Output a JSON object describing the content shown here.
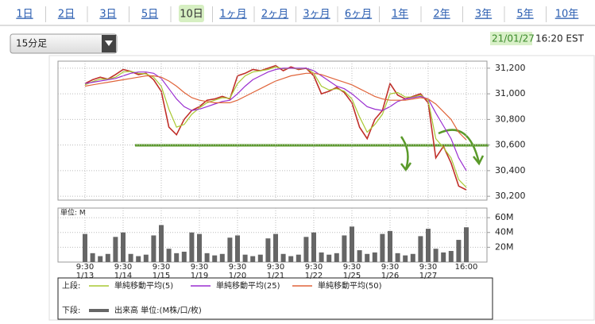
{
  "tabs": [
    {
      "label": "1日"
    },
    {
      "label": "2日"
    },
    {
      "label": "3日"
    },
    {
      "label": "5日"
    },
    {
      "label": "10日",
      "selected": true
    },
    {
      "label": "1ヶ月"
    },
    {
      "label": "2ヶ月"
    },
    {
      "label": "3ヶ月"
    },
    {
      "label": "6ヶ月"
    },
    {
      "label": "1年"
    },
    {
      "label": "2年"
    },
    {
      "label": "3年"
    },
    {
      "label": "5年"
    },
    {
      "label": "10年"
    }
  ],
  "interval_select": "15分足",
  "timestamp": {
    "date": "21/01/27",
    "time": "16:20 EST"
  },
  "legend": {
    "top_label": "上段:",
    "bottom_label": "下段:"
  },
  "chart_data": [
    {
      "type": "line",
      "ylim": [
        30170,
        31255
      ],
      "yticks": [
        {
          "value": 30200,
          "label": "30,200"
        },
        {
          "value": 30400,
          "label": "30,400"
        },
        {
          "value": 30600,
          "label": "30,600"
        },
        {
          "value": 30800,
          "label": "30,800"
        },
        {
          "value": 31000,
          "label": "31,000"
        },
        {
          "value": 31200,
          "label": "31,200"
        }
      ],
      "grid": true,
      "series": [
        {
          "color": "#c0302a",
          "values": [
            31080,
            31110,
            31130,
            31115,
            31150,
            31190,
            31175,
            31150,
            31160,
            31110,
            31020,
            30740,
            30680,
            30800,
            30870,
            30900,
            30950,
            30960,
            30980,
            30960,
            31140,
            31160,
            31190,
            31180,
            31200,
            31220,
            31180,
            31210,
            31190,
            31200,
            31140,
            31000,
            31020,
            31050,
            31010,
            30930,
            30740,
            30650,
            30800,
            30870,
            31080,
            30990,
            30960,
            30980,
            31000,
            30930,
            30500,
            30590,
            30460,
            30280,
            30250
          ]
        },
        {
          "name": "単純移動平均(5)",
          "color": "#a8c832",
          "values": [
            31070,
            31095,
            31115,
            31115,
            31130,
            31170,
            31175,
            31160,
            31155,
            31130,
            31060,
            30880,
            30740,
            30760,
            30840,
            30890,
            30930,
            30950,
            30970,
            30965,
            31080,
            31140,
            31170,
            31180,
            31190,
            31210,
            31195,
            31200,
            31195,
            31200,
            31160,
            31060,
            31030,
            31040,
            31020,
            30960,
            30820,
            30700,
            30760,
            30840,
            31000,
            31010,
            30975,
            30975,
            30990,
            30950,
            30650,
            30580,
            30500,
            30330,
            30270
          ]
        },
        {
          "name": "単純移動平均(25)",
          "color": "#9a2fd0",
          "values": [
            31080,
            31090,
            31100,
            31110,
            31120,
            31140,
            31160,
            31170,
            31170,
            31160,
            31120,
            31040,
            30960,
            30900,
            30870,
            30880,
            30900,
            30920,
            30940,
            30950,
            31000,
            31060,
            31110,
            31140,
            31170,
            31190,
            31200,
            31200,
            31200,
            31200,
            31180,
            31140,
            31100,
            31060,
            31040,
            31000,
            30950,
            30900,
            30880,
            30870,
            30900,
            30940,
            30960,
            30970,
            30980,
            30960,
            30850,
            30750,
            30650,
            30500,
            30400
          ]
        },
        {
          "name": "単純移動平均(50)",
          "color": "#e0643a",
          "values": [
            31060,
            31070,
            31080,
            31090,
            31100,
            31110,
            31120,
            31130,
            31140,
            31140,
            31130,
            31100,
            31060,
            31010,
            30970,
            30950,
            30940,
            30930,
            30930,
            30930,
            30950,
            30980,
            31010,
            31040,
            31070,
            31100,
            31120,
            31140,
            31150,
            31160,
            31160,
            31150,
            31130,
            31110,
            31090,
            31070,
            31040,
            31010,
            30980,
            30960,
            30950,
            30950,
            30950,
            30960,
            30970,
            30960,
            30920,
            30860,
            30800,
            30700,
            30640
          ]
        }
      ]
    },
    {
      "type": "bar",
      "unit_label": "単位: M",
      "ylim": [
        0,
        73
      ],
      "yticks": [
        {
          "value": 20,
          "label": "20M"
        },
        {
          "value": 40,
          "label": "40M"
        },
        {
          "value": 60,
          "label": "60M"
        }
      ],
      "grid": true,
      "categories": [
        "9:30",
        null,
        null,
        null,
        null,
        "9:30",
        null,
        null,
        null,
        null,
        "9:30",
        null,
        null,
        null,
        null,
        "9:30",
        null,
        null,
        null,
        null,
        "9:30",
        null,
        null,
        null,
        null,
        "9:30",
        null,
        null,
        null,
        null,
        "9:30",
        null,
        null,
        null,
        null,
        "9:30",
        null,
        null,
        null,
        null,
        "9:30",
        null,
        null,
        null,
        null,
        "9:30",
        null,
        null,
        null,
        null,
        "16:00"
      ],
      "category_dates": [
        "1/13",
        null,
        null,
        null,
        null,
        "1/14",
        null,
        null,
        null,
        null,
        "1/15",
        null,
        null,
        null,
        null,
        "1/19",
        null,
        null,
        null,
        null,
        "1/20",
        null,
        null,
        null,
        null,
        "1/21",
        null,
        null,
        null,
        null,
        "1/22",
        null,
        null,
        null,
        null,
        "1/25",
        null,
        null,
        null,
        null,
        "1/26",
        null,
        null,
        null,
        null,
        "1/27",
        null,
        null,
        null,
        null,
        null
      ],
      "series": [
        {
          "name": "出来高 単位:(M株/口/枚)",
          "color": "#666666",
          "values": [
            38,
            12,
            8,
            11,
            34,
            40,
            11,
            8,
            10,
            36,
            50,
            18,
            12,
            14,
            40,
            38,
            12,
            9,
            11,
            33,
            36,
            10,
            8,
            10,
            32,
            38,
            11,
            8,
            10,
            34,
            40,
            13,
            10,
            12,
            36,
            48,
            16,
            11,
            13,
            38,
            42,
            12,
            9,
            11,
            35,
            45,
            18,
            13,
            15,
            30,
            47
          ]
        }
      ]
    }
  ]
}
